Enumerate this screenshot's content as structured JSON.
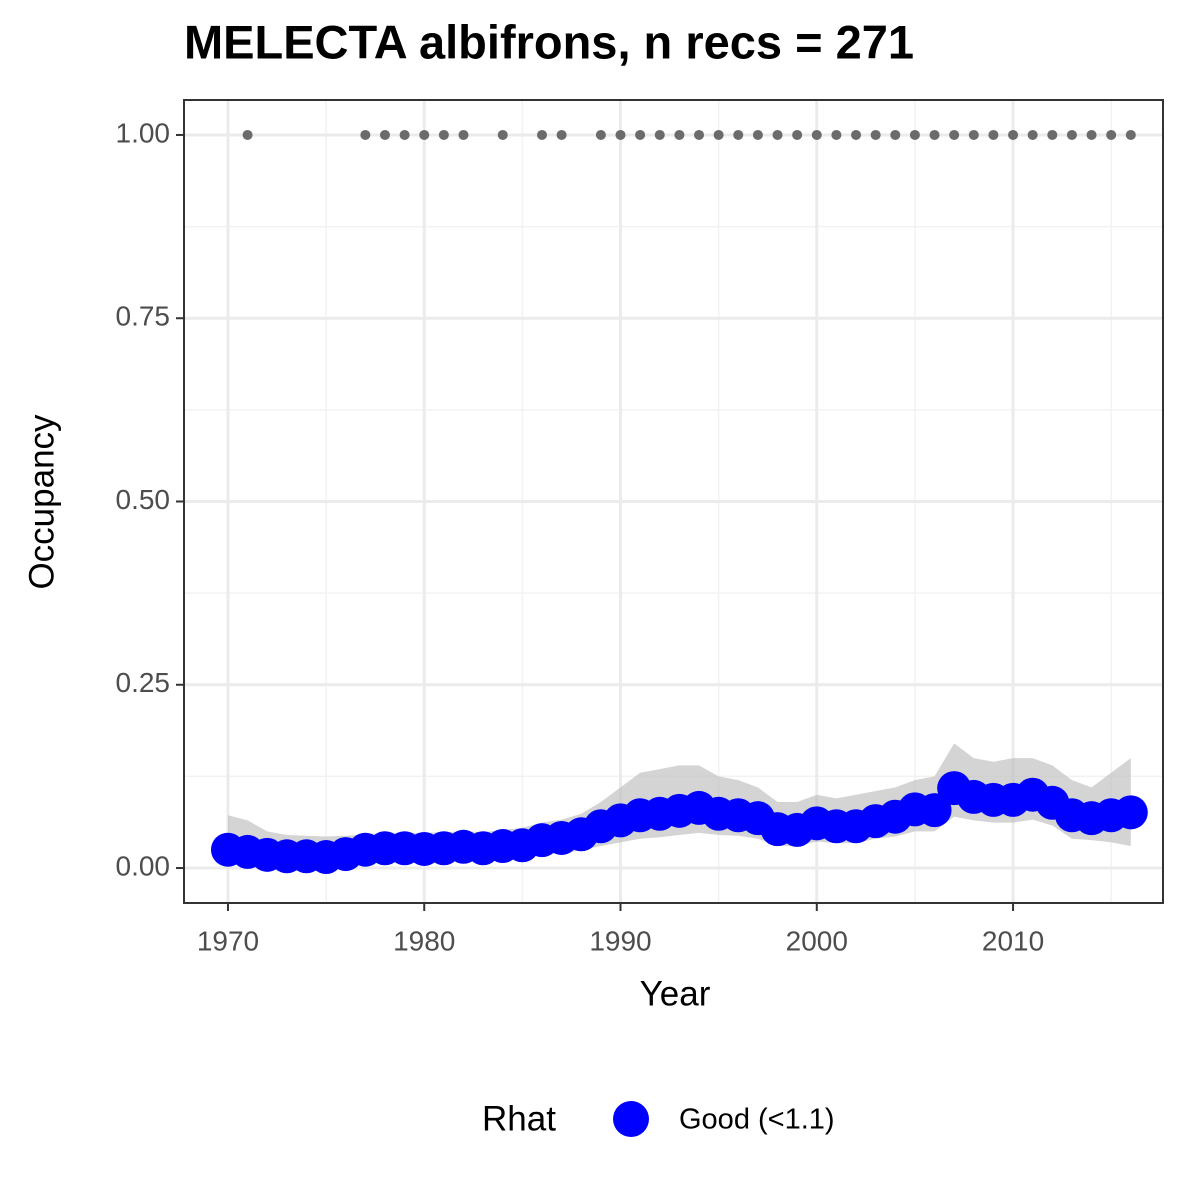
{
  "chart_data": {
    "type": "line",
    "title": "MELECTA albifrons, n recs = 271",
    "x_label": "Year",
    "y_label": "Occupancy",
    "x": [
      1970,
      1971,
      1972,
      1973,
      1974,
      1975,
      1976,
      1977,
      1978,
      1979,
      1980,
      1981,
      1982,
      1983,
      1984,
      1985,
      1986,
      1987,
      1988,
      1989,
      1990,
      1991,
      1992,
      1993,
      1994,
      1995,
      1996,
      1997,
      1998,
      1999,
      2000,
      2001,
      2002,
      2003,
      2004,
      2005,
      2006,
      2007,
      2008,
      2009,
      2010,
      2011,
      2012,
      2013,
      2014,
      2015,
      2016
    ],
    "series": [
      {
        "name": "Good (<1.1)",
        "color": "#0000ff",
        "values": [
          0.025,
          0.022,
          0.018,
          0.016,
          0.016,
          0.015,
          0.019,
          0.025,
          0.027,
          0.027,
          0.026,
          0.027,
          0.029,
          0.027,
          0.03,
          0.031,
          0.038,
          0.041,
          0.046,
          0.057,
          0.065,
          0.072,
          0.074,
          0.078,
          0.082,
          0.074,
          0.072,
          0.068,
          0.053,
          0.052,
          0.061,
          0.057,
          0.057,
          0.064,
          0.07,
          0.08,
          0.079,
          0.109,
          0.097,
          0.093,
          0.093,
          0.1,
          0.089,
          0.072,
          0.068,
          0.072,
          0.076
        ],
        "upper": [
          0.072,
          0.065,
          0.05,
          0.045,
          0.044,
          0.043,
          0.044,
          0.046,
          0.048,
          0.048,
          0.048,
          0.049,
          0.05,
          0.049,
          0.052,
          0.055,
          0.062,
          0.066,
          0.074,
          0.09,
          0.11,
          0.13,
          0.135,
          0.14,
          0.14,
          0.125,
          0.12,
          0.11,
          0.09,
          0.09,
          0.1,
          0.095,
          0.1,
          0.105,
          0.11,
          0.12,
          0.125,
          0.17,
          0.15,
          0.145,
          0.15,
          0.15,
          0.14,
          0.12,
          0.11,
          0.13,
          0.15
        ],
        "lower": [
          0.005,
          0.006,
          0.005,
          0.004,
          0.004,
          0.004,
          0.005,
          0.008,
          0.01,
          0.01,
          0.01,
          0.011,
          0.012,
          0.011,
          0.013,
          0.014,
          0.018,
          0.02,
          0.024,
          0.03,
          0.035,
          0.04,
          0.042,
          0.045,
          0.048,
          0.045,
          0.044,
          0.04,
          0.03,
          0.03,
          0.036,
          0.034,
          0.034,
          0.04,
          0.043,
          0.05,
          0.05,
          0.07,
          0.065,
          0.062,
          0.062,
          0.066,
          0.058,
          0.04,
          0.038,
          0.035,
          0.03
        ],
        "band_color": "#bdbdbd"
      }
    ],
    "records": {
      "color": "#6b6b6b",
      "x": [
        1971,
        1977,
        1978,
        1979,
        1980,
        1981,
        1982,
        1984,
        1986,
        1987,
        1989,
        1990,
        1991,
        1992,
        1993,
        1994,
        1995,
        1996,
        1997,
        1998,
        1999,
        2000,
        2001,
        2002,
        2003,
        2004,
        2005,
        2006,
        2007,
        2008,
        2009,
        2010,
        2011,
        2012,
        2013,
        2014,
        2015,
        2016
      ],
      "values": [
        1,
        1,
        1,
        1,
        1,
        1,
        1,
        1,
        1,
        1,
        1,
        1,
        1,
        1,
        1,
        1,
        1,
        1,
        1,
        1,
        1,
        1,
        1,
        1,
        1,
        1,
        1,
        1,
        1,
        1,
        1,
        1,
        1,
        1,
        1,
        1,
        1,
        1
      ]
    },
    "xlim": [
      1967.76,
      2017.64
    ],
    "xticks": [
      1970,
      1980,
      1990,
      2000,
      2010
    ],
    "ylim": [
      -0.0477,
      1.0477
    ],
    "yticks": [
      {
        "value": 0,
        "label": "0.00"
      },
      {
        "value": 0.25,
        "label": "0.25"
      },
      {
        "value": 0.5,
        "label": "0.50"
      },
      {
        "value": 0.75,
        "label": "0.75"
      },
      {
        "value": 1,
        "label": "1.00"
      }
    ],
    "grid": true,
    "legend_title": "Rhat",
    "legend_position": "bottom"
  }
}
